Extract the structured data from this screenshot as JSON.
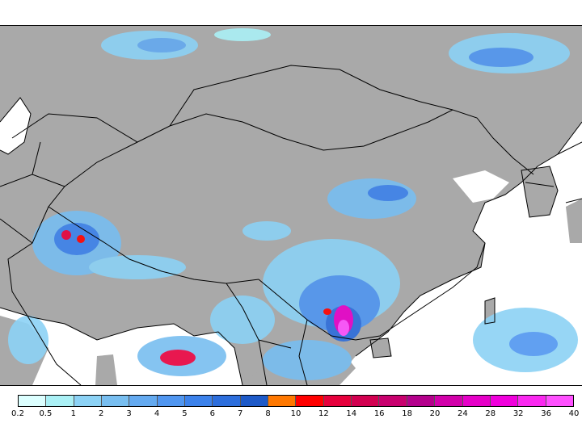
{
  "map": {
    "region": "East and South Asia",
    "land_color": "#a9a9a9",
    "sea_color": "#ffffff",
    "border_color": "#000000"
  },
  "legend": {
    "labels": [
      "0.2",
      "0.5",
      "1",
      "2",
      "3",
      "4",
      "5",
      "6",
      "7",
      "8",
      "10",
      "12",
      "14",
      "16",
      "18",
      "20",
      "24",
      "28",
      "32",
      "36",
      "40"
    ],
    "colors": [
      "#dcffff",
      "#aaf0f5",
      "#8cd2f5",
      "#78bef0",
      "#64aaf0",
      "#5096f0",
      "#3c82eb",
      "#2d6edc",
      "#1e5ac8",
      "#ff7800",
      "#ff0000",
      "#e6003c",
      "#d20050",
      "#c8006e",
      "#b4008c",
      "#d200aa",
      "#e600c8",
      "#f000dc",
      "#fa28f0",
      "#ff50ff"
    ]
  }
}
